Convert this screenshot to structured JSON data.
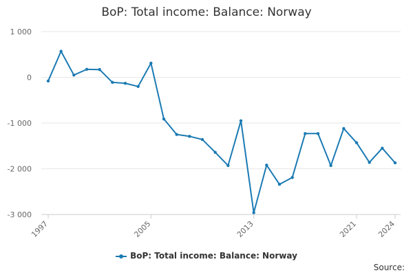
{
  "chart_data": {
    "type": "line",
    "title": "BoP: Total income: Balance: Norway",
    "xlabel": "",
    "ylabel": "",
    "x": [
      1997,
      1998,
      1999,
      2000,
      2001,
      2002,
      2003,
      2004,
      2005,
      2006,
      2007,
      2008,
      2009,
      2010,
      2011,
      2012,
      2013,
      2014,
      2015,
      2016,
      2017,
      2018,
      2019,
      2020,
      2021,
      2022,
      2023,
      2024
    ],
    "x_tick_labels": [
      "1997",
      "2005",
      "2013",
      "2021",
      "2024"
    ],
    "y_tick_values": [
      1000,
      0,
      -1000,
      -2000,
      -3000
    ],
    "y_tick_labels": [
      "1 000",
      "0",
      "-1 000",
      "-2 000",
      "-3 000"
    ],
    "ylim": [
      -3000,
      1000
    ],
    "series": [
      {
        "name": "BoP: Total income: Balance: Norway",
        "color": "#1a7ab3",
        "values": [
          -80,
          570,
          50,
          175,
          170,
          -110,
          -130,
          -200,
          310,
          -910,
          -1250,
          -1290,
          -1360,
          -1640,
          -1930,
          -950,
          -2960,
          -1920,
          -2340,
          -2190,
          -1230,
          -1230,
          -1930,
          -1120,
          -1430,
          -1860,
          -1550,
          -1870
        ]
      }
    ],
    "legend": {
      "position": "bottom",
      "label": "BoP: Total income: Balance: Norway"
    },
    "grid": true
  },
  "footer": {
    "source_label": "Source:"
  }
}
